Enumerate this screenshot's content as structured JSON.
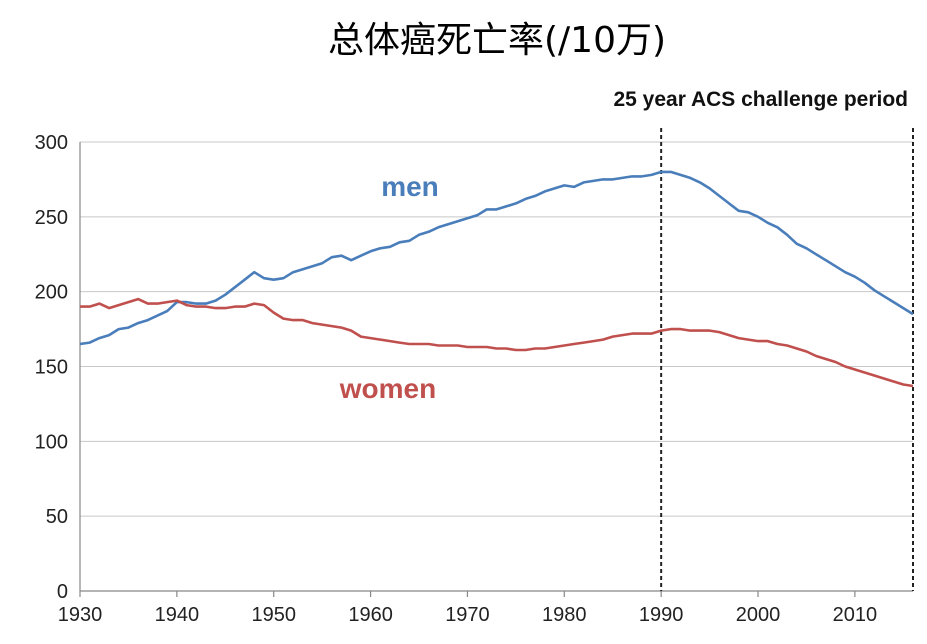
{
  "chart_data": {
    "type": "line",
    "title": "总体癌死亡率(/10万)",
    "annotation": "25 year ACS challenge period",
    "period_start": 1990,
    "period_end": 2016,
    "xlim": [
      1930,
      2016
    ],
    "ylim": [
      0,
      300
    ],
    "x_ticks": [
      1930,
      1940,
      1950,
      1960,
      1970,
      1980,
      1990,
      2000,
      2010
    ],
    "y_ticks": [
      0,
      50,
      100,
      150,
      200,
      250,
      300
    ],
    "grid": true,
    "series": [
      {
        "name": "men",
        "color": "#4a7ebb",
        "x": [
          1930,
          1931,
          1932,
          1933,
          1934,
          1935,
          1936,
          1937,
          1938,
          1939,
          1940,
          1941,
          1942,
          1943,
          1944,
          1945,
          1946,
          1947,
          1948,
          1949,
          1950,
          1951,
          1952,
          1953,
          1954,
          1955,
          1956,
          1957,
          1958,
          1959,
          1960,
          1961,
          1962,
          1963,
          1964,
          1965,
          1966,
          1967,
          1968,
          1969,
          1970,
          1971,
          1972,
          1973,
          1974,
          1975,
          1976,
          1977,
          1978,
          1979,
          1980,
          1981,
          1982,
          1983,
          1984,
          1985,
          1986,
          1987,
          1988,
          1989,
          1990,
          1991,
          1992,
          1993,
          1994,
          1995,
          1996,
          1997,
          1998,
          1999,
          2000,
          2001,
          2002,
          2003,
          2004,
          2005,
          2006,
          2007,
          2008,
          2009,
          2010,
          2011,
          2012,
          2013,
          2014,
          2015,
          2016
        ],
        "values": [
          165,
          166,
          169,
          171,
          175,
          176,
          179,
          181,
          184,
          187,
          193,
          193,
          192,
          192,
          194,
          198,
          203,
          208,
          213,
          209,
          208,
          209,
          213,
          215,
          217,
          219,
          223,
          224,
          221,
          224,
          227,
          229,
          230,
          233,
          234,
          238,
          240,
          243,
          245,
          247,
          249,
          251,
          255,
          255,
          257,
          259,
          262,
          264,
          267,
          269,
          271,
          270,
          273,
          274,
          275,
          275,
          276,
          277,
          277,
          278,
          280,
          280,
          278,
          276,
          273,
          269,
          264,
          259,
          254,
          253,
          250,
          246,
          243,
          238,
          232,
          229,
          225,
          221,
          217,
          213,
          210,
          206,
          201,
          197,
          193,
          189,
          185
        ]
      },
      {
        "name": "women",
        "color": "#c0504d",
        "x": [
          1930,
          1931,
          1932,
          1933,
          1934,
          1935,
          1936,
          1937,
          1938,
          1939,
          1940,
          1941,
          1942,
          1943,
          1944,
          1945,
          1946,
          1947,
          1948,
          1949,
          1950,
          1951,
          1952,
          1953,
          1954,
          1955,
          1956,
          1957,
          1958,
          1959,
          1960,
          1961,
          1962,
          1963,
          1964,
          1965,
          1966,
          1967,
          1968,
          1969,
          1970,
          1971,
          1972,
          1973,
          1974,
          1975,
          1976,
          1977,
          1978,
          1979,
          1980,
          1981,
          1982,
          1983,
          1984,
          1985,
          1986,
          1987,
          1988,
          1989,
          1990,
          1991,
          1992,
          1993,
          1994,
          1995,
          1996,
          1997,
          1998,
          1999,
          2000,
          2001,
          2002,
          2003,
          2004,
          2005,
          2006,
          2007,
          2008,
          2009,
          2010,
          2011,
          2012,
          2013,
          2014,
          2015,
          2016
        ],
        "values": [
          190,
          190,
          192,
          189,
          191,
          193,
          195,
          192,
          192,
          193,
          194,
          191,
          190,
          190,
          189,
          189,
          190,
          190,
          192,
          191,
          186,
          182,
          181,
          181,
          179,
          178,
          177,
          176,
          174,
          170,
          169,
          168,
          167,
          166,
          165,
          165,
          165,
          164,
          164,
          164,
          163,
          163,
          163,
          162,
          162,
          161,
          161,
          162,
          162,
          163,
          164,
          165,
          166,
          167,
          168,
          170,
          171,
          172,
          172,
          172,
          174,
          175,
          175,
          174,
          174,
          174,
          173,
          171,
          169,
          168,
          167,
          167,
          165,
          164,
          162,
          160,
          157,
          155,
          153,
          150,
          148,
          146,
          144,
          142,
          140,
          138,
          137
        ]
      }
    ]
  }
}
